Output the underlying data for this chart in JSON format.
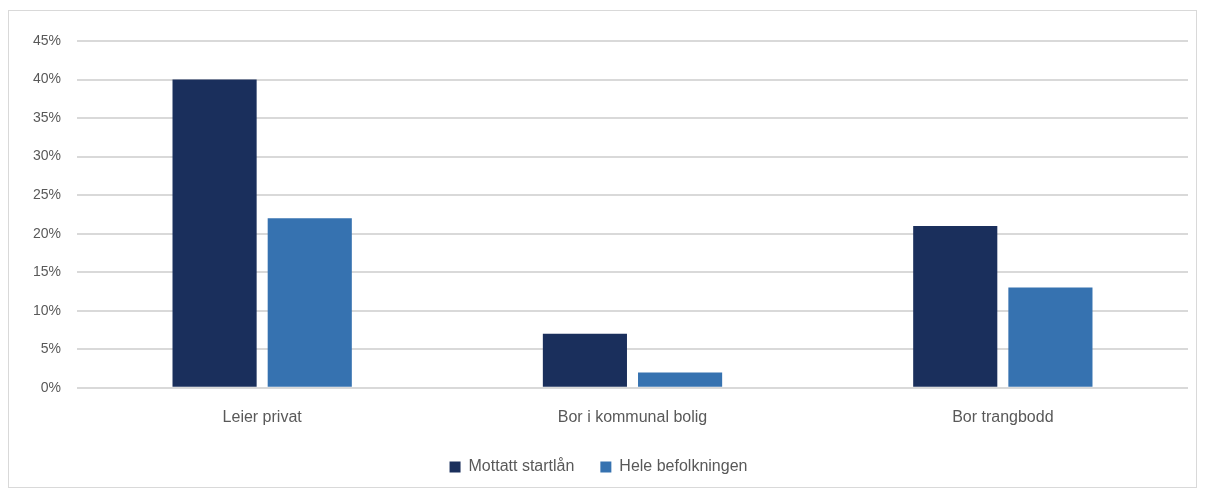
{
  "chart_data": {
    "type": "bar",
    "categories": [
      "Leier privat",
      "Bor i kommunal bolig",
      "Bor trangbodd"
    ],
    "series": [
      {
        "name": "Mottatt startlån",
        "color": "#1a2f5c",
        "values": [
          40,
          7,
          21
        ]
      },
      {
        "name": "Hele befolkningen",
        "color": "#3672b0",
        "values": [
          22,
          2,
          13
        ]
      }
    ],
    "ylim": [
      0,
      45
    ],
    "yticks": [
      {
        "value": 0,
        "label": "0%"
      },
      {
        "value": 5,
        "label": "5%"
      },
      {
        "value": 10,
        "label": "10%"
      },
      {
        "value": 15,
        "label": "15%"
      },
      {
        "value": 20,
        "label": "20%"
      },
      {
        "value": 25,
        "label": "25%"
      },
      {
        "value": 30,
        "label": "30%"
      },
      {
        "value": 35,
        "label": "35%"
      },
      {
        "value": 40,
        "label": "40%"
      },
      {
        "value": 45,
        "label": "45%"
      }
    ],
    "grid": "y",
    "legend": "bottom"
  }
}
